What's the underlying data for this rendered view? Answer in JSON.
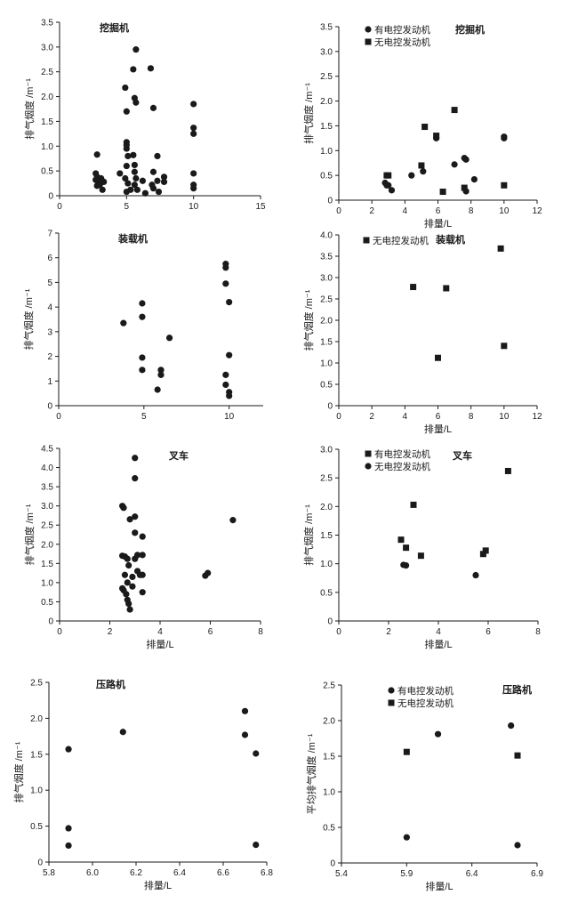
{
  "chart_data": [
    {
      "id": "excavator-1",
      "type": "scatter",
      "title": "挖掘机",
      "xlabel": "",
      "ylabel": "排气烟度 /m⁻¹",
      "xlim": [
        0,
        15
      ],
      "ylim": [
        0,
        3.5
      ],
      "xticks": [
        0,
        5,
        10,
        15
      ],
      "xtick_labels": [
        "0",
        "5",
        "10",
        "15"
      ],
      "yticks": [
        0,
        0.5,
        1,
        1.5,
        2,
        2.5,
        3,
        3.5
      ],
      "ytick_labels": [
        "0",
        "0.5",
        "1.0",
        "1.5",
        "2.0",
        "2.5",
        "3.0",
        "3.5"
      ],
      "legend": [],
      "series": [
        {
          "marker": "circle",
          "points": [
            [
              2.8,
              0.83
            ],
            [
              2.7,
              0.45
            ],
            [
              2.8,
              0.38
            ],
            [
              2.7,
              0.32
            ],
            [
              2.9,
              0.28
            ],
            [
              3.0,
              0.22
            ],
            [
              3.1,
              0.35
            ],
            [
              3.2,
              0.12
            ],
            [
              2.8,
              0.2
            ],
            [
              4.5,
              0.45
            ],
            [
              4.9,
              2.18
            ],
            [
              5.0,
              1.7
            ],
            [
              5.0,
              1.08
            ],
            [
              5.0,
              1.02
            ],
            [
              5.0,
              0.95
            ],
            [
              5.1,
              0.8
            ],
            [
              5.0,
              0.6
            ],
            [
              4.9,
              0.35
            ],
            [
              5.1,
              0.25
            ],
            [
              5.0,
              0.08
            ],
            [
              5.5,
              2.55
            ],
            [
              5.7,
              2.95
            ],
            [
              5.6,
              1.97
            ],
            [
              5.7,
              1.88
            ],
            [
              5.5,
              0.82
            ],
            [
              5.6,
              0.62
            ],
            [
              5.6,
              0.48
            ],
            [
              5.7,
              0.35
            ],
            [
              5.6,
              0.22
            ],
            [
              5.8,
              0.12
            ],
            [
              6.4,
              0.05
            ],
            [
              6.8,
              2.57
            ],
            [
              7.0,
              1.77
            ],
            [
              7.0,
              0.48
            ],
            [
              6.9,
              0.22
            ],
            [
              7.3,
              0.8
            ],
            [
              7.3,
              0.3
            ],
            [
              7.4,
              0.08
            ],
            [
              7.8,
              0.28
            ],
            [
              7.8,
              0.38
            ],
            [
              10.0,
              1.85
            ],
            [
              10.0,
              1.37
            ],
            [
              10.0,
              1.25
            ],
            [
              10.0,
              0.45
            ],
            [
              10.0,
              0.22
            ],
            [
              10.0,
              0.15
            ],
            [
              5.3,
              0.12
            ],
            [
              6.2,
              0.3
            ],
            [
              7.0,
              0.15
            ],
            [
              3.3,
              0.28
            ]
          ]
        }
      ]
    },
    {
      "id": "excavator-2",
      "type": "scatter",
      "title": "挖掘机",
      "xlabel": "排量/L",
      "ylabel": "排气烟度 /m⁻¹",
      "xlim": [
        0,
        12
      ],
      "ylim": [
        0,
        3.5
      ],
      "xticks": [
        0,
        2,
        4,
        6,
        8,
        10,
        12
      ],
      "xtick_labels": [
        "0",
        "2",
        "4",
        "6",
        "8",
        "10",
        "12"
      ],
      "yticks": [
        0,
        0.5,
        1,
        1.5,
        2,
        2.5,
        3,
        3.5
      ],
      "ytick_labels": [
        "0",
        "0.5",
        "1.0",
        "1.5",
        "2.0",
        "2.5",
        "3.0",
        "3.5"
      ],
      "legend": [
        "有电控发动机",
        "无电控发动机"
      ],
      "series": [
        {
          "name": "有电控发动机",
          "marker": "circle",
          "points": [
            [
              2.8,
              0.35
            ],
            [
              2.9,
              0.3
            ],
            [
              3.0,
              0.3
            ],
            [
              3.2,
              0.2
            ],
            [
              4.4,
              0.5
            ],
            [
              5.1,
              0.58
            ],
            [
              5.9,
              1.25
            ],
            [
              7.0,
              0.72
            ],
            [
              7.6,
              0.85
            ],
            [
              7.7,
              0.82
            ],
            [
              7.7,
              0.18
            ],
            [
              8.2,
              0.42
            ],
            [
              10.0,
              1.28
            ],
            [
              10.0,
              1.25
            ]
          ]
        },
        {
          "name": "无电控发动机",
          "marker": "square",
          "points": [
            [
              2.9,
              0.5
            ],
            [
              3.0,
              0.5
            ],
            [
              5.0,
              0.7
            ],
            [
              5.2,
              1.48
            ],
            [
              5.9,
              1.3
            ],
            [
              6.3,
              0.17
            ],
            [
              7.0,
              1.82
            ],
            [
              7.6,
              0.25
            ],
            [
              10.0,
              0.3
            ]
          ]
        }
      ]
    },
    {
      "id": "loader-1",
      "type": "scatter",
      "title": "装载机",
      "xlabel": "",
      "ylabel": "排气烟度 /m⁻¹",
      "xlim": [
        0,
        12
      ],
      "ylim": [
        0,
        7
      ],
      "xticks": [
        0,
        5,
        10
      ],
      "xtick_labels": [
        "0",
        "5",
        "10"
      ],
      "yticks": [
        0,
        1,
        2,
        3,
        4,
        5,
        6,
        7
      ],
      "ytick_labels": [
        "0",
        "1",
        "2",
        "3",
        "4",
        "5",
        "6",
        "7"
      ],
      "legend": [],
      "series": [
        {
          "marker": "circle",
          "points": [
            [
              3.8,
              3.35
            ],
            [
              4.9,
              4.15
            ],
            [
              4.9,
              3.6
            ],
            [
              4.9,
              1.95
            ],
            [
              4.9,
              1.45
            ],
            [
              5.8,
              0.65
            ],
            [
              6.0,
              1.45
            ],
            [
              6.0,
              1.25
            ],
            [
              6.5,
              2.75
            ],
            [
              9.8,
              5.75
            ],
            [
              9.8,
              5.6
            ],
            [
              9.8,
              4.95
            ],
            [
              9.8,
              1.25
            ],
            [
              9.8,
              0.85
            ],
            [
              10.0,
              4.2
            ],
            [
              10.0,
              2.05
            ],
            [
              10.0,
              0.55
            ],
            [
              10.0,
              0.4
            ]
          ]
        }
      ]
    },
    {
      "id": "loader-2",
      "type": "scatter",
      "title": "装载机",
      "xlabel": "排量/L",
      "ylabel": "排气烟度 /m⁻¹",
      "xlim": [
        0,
        12
      ],
      "ylim": [
        0,
        4
      ],
      "xticks": [
        0,
        2,
        4,
        6,
        8,
        10,
        12
      ],
      "xtick_labels": [
        "0",
        "2",
        "4",
        "6",
        "8",
        "10",
        "12"
      ],
      "yticks": [
        0,
        0.5,
        1,
        1.5,
        2,
        2.5,
        3,
        3.5,
        4
      ],
      "ytick_labels": [
        "0",
        "0.5",
        "1.0",
        "1.5",
        "2.0",
        "2.5",
        "3.0",
        "3.5",
        "4.0"
      ],
      "legend": [
        "无电控发动机"
      ],
      "series": [
        {
          "name": "无电控发动机",
          "marker": "square",
          "points": [
            [
              4.5,
              2.78
            ],
            [
              6.0,
              1.12
            ],
            [
              6.5,
              2.75
            ],
            [
              9.8,
              3.68
            ],
            [
              10.0,
              1.4
            ]
          ]
        }
      ]
    },
    {
      "id": "forklift-1",
      "type": "scatter",
      "title": "叉车",
      "xlabel": "排量/L",
      "ylabel": "排气烟度 /m⁻¹",
      "xlim": [
        0,
        8
      ],
      "ylim": [
        0,
        4.5
      ],
      "xticks": [
        0,
        2,
        4,
        6,
        8
      ],
      "xtick_labels": [
        "0",
        "2",
        "4",
        "6",
        "8"
      ],
      "yticks": [
        0,
        0.5,
        1,
        1.5,
        2,
        2.5,
        3,
        3.5,
        4,
        4.5
      ],
      "ytick_labels": [
        "0",
        "0.5",
        "1.0",
        "1.5",
        "2.0",
        "2.5",
        "3.0",
        "3.5",
        "4.0",
        "4.5"
      ],
      "legend": [],
      "series": [
        {
          "marker": "circle",
          "points": [
            [
              2.5,
              3.0
            ],
            [
              2.55,
              2.95
            ],
            [
              2.5,
              1.7
            ],
            [
              2.6,
              1.68
            ],
            [
              2.7,
              1.62
            ],
            [
              2.75,
              1.45
            ],
            [
              2.6,
              1.2
            ],
            [
              2.5,
              0.85
            ],
            [
              2.55,
              0.8
            ],
            [
              2.65,
              0.7
            ],
            [
              2.7,
              1.0
            ],
            [
              2.7,
              0.55
            ],
            [
              2.75,
              0.45
            ],
            [
              2.8,
              0.3
            ],
            [
              2.8,
              2.65
            ],
            [
              3.0,
              4.25
            ],
            [
              3.0,
              3.72
            ],
            [
              3.0,
              2.72
            ],
            [
              3.0,
              2.3
            ],
            [
              3.1,
              1.72
            ],
            [
              3.0,
              1.62
            ],
            [
              3.1,
              1.3
            ],
            [
              3.2,
              1.2
            ],
            [
              3.3,
              2.2
            ],
            [
              3.3,
              1.72
            ],
            [
              3.3,
              1.2
            ],
            [
              3.3,
              0.75
            ],
            [
              2.9,
              1.15
            ],
            [
              2.9,
              0.9
            ],
            [
              5.8,
              1.18
            ],
            [
              5.9,
              1.25
            ],
            [
              6.9,
              2.63
            ]
          ]
        }
      ]
    },
    {
      "id": "forklift-2",
      "type": "scatter",
      "title": "叉车",
      "xlabel": "排量/L",
      "ylabel": "排气烟度 /m⁻¹",
      "xlim": [
        0,
        8
      ],
      "ylim": [
        0,
        3
      ],
      "xticks": [
        0,
        2,
        4,
        6,
        8
      ],
      "xtick_labels": [
        "0",
        "2",
        "4",
        "6",
        "8"
      ],
      "yticks": [
        0,
        0.5,
        1,
        1.5,
        2,
        2.5,
        3
      ],
      "ytick_labels": [
        "0",
        "0.5",
        "1.0",
        "1.5",
        "2.0",
        "2.5",
        "3.0"
      ],
      "legend": [
        "有电控发动机",
        "无电控发动机"
      ],
      "series": [
        {
          "name": "有电控发动机",
          "marker": "square",
          "points": [
            [
              2.5,
              1.42
            ],
            [
              2.7,
              1.28
            ],
            [
              3.0,
              2.03
            ],
            [
              3.3,
              1.14
            ],
            [
              5.8,
              1.17
            ],
            [
              5.9,
              1.23
            ],
            [
              6.8,
              2.62
            ]
          ]
        },
        {
          "name": "无电控发动机",
          "marker": "circle",
          "points": [
            [
              2.6,
              0.98
            ],
            [
              2.7,
              0.97
            ],
            [
              5.5,
              0.8
            ]
          ]
        }
      ]
    },
    {
      "id": "roller-1",
      "type": "scatter",
      "title": "压路机",
      "xlabel": "排量/L",
      "ylabel": "排气烟度 /m⁻¹",
      "xlim": [
        5.8,
        6.8
      ],
      "ylim": [
        0,
        2.5
      ],
      "xticks": [
        5.8,
        6.0,
        6.2,
        6.4,
        6.6,
        6.8
      ],
      "xtick_labels": [
        "5.8",
        "6.0",
        "6.2",
        "6.4",
        "6.6",
        "6.8"
      ],
      "yticks": [
        0,
        0.5,
        1,
        1.5,
        2,
        2.5
      ],
      "ytick_labels": [
        "0",
        "0.5",
        "1.0",
        "1.5",
        "2.0",
        "2.5"
      ],
      "legend": [],
      "series": [
        {
          "marker": "circle",
          "points": [
            [
              5.89,
              1.57
            ],
            [
              5.89,
              0.47
            ],
            [
              5.89,
              0.23
            ],
            [
              6.14,
              1.81
            ],
            [
              6.7,
              2.1
            ],
            [
              6.7,
              1.77
            ],
            [
              6.75,
              1.51
            ],
            [
              6.75,
              0.24
            ]
          ]
        }
      ]
    },
    {
      "id": "roller-2",
      "type": "scatter",
      "title": "压路机",
      "xlabel": "排量/L",
      "ylabel": "平均排气烟度 /m⁻¹",
      "xlim": [
        5.4,
        6.9
      ],
      "ylim": [
        0,
        2.5
      ],
      "xticks": [
        5.4,
        5.9,
        6.4,
        6.9
      ],
      "xtick_labels": [
        "5.4",
        "5.9",
        "6.4",
        "6.9"
      ],
      "yticks": [
        0,
        0.5,
        1,
        1.5,
        2,
        2.5
      ],
      "ytick_labels": [
        "0",
        "0.5",
        "1.0",
        "1.5",
        "2.0",
        "2.5"
      ],
      "legend": [
        "有电控发动机",
        "无电控发动机"
      ],
      "series": [
        {
          "name": "有电控发动机",
          "marker": "circle",
          "points": [
            [
              5.9,
              0.36
            ],
            [
              6.14,
              1.81
            ],
            [
              6.7,
              1.93
            ],
            [
              6.75,
              0.25
            ]
          ]
        },
        {
          "name": "无电控发动机",
          "marker": "square",
          "points": [
            [
              5.9,
              1.56
            ],
            [
              6.75,
              1.51
            ]
          ]
        }
      ]
    }
  ]
}
